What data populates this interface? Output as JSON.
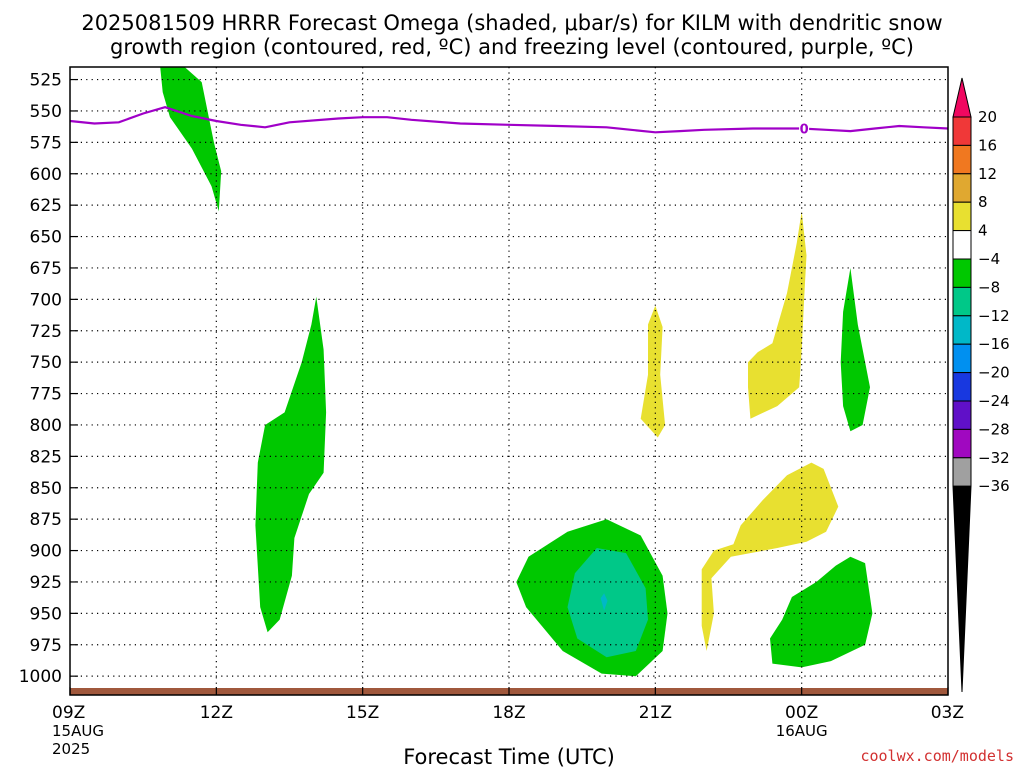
{
  "chart_data": {
    "type": "contour",
    "title_line1": "2025081509 HRRR Forecast Omega (shaded, μbar/s) for KILM with dendritic snow",
    "title_line2": "growth region (contoured, red, ºC) and freezing level (contoured, purple, ºC)",
    "xlabel": "Forecast Time (UTC)",
    "credit": "coolwx.com/models",
    "x_ticks": [
      {
        "hour": 9,
        "label": "09Z",
        "sub1": "15AUG",
        "sub2": "2025"
      },
      {
        "hour": 12,
        "label": "12Z",
        "sub1": "",
        "sub2": ""
      },
      {
        "hour": 15,
        "label": "15Z",
        "sub1": "",
        "sub2": ""
      },
      {
        "hour": 18,
        "label": "18Z",
        "sub1": "",
        "sub2": ""
      },
      {
        "hour": 21,
        "label": "21Z",
        "sub1": "",
        "sub2": ""
      },
      {
        "hour": 24,
        "label": "00Z",
        "sub1": "16AUG",
        "sub2": ""
      },
      {
        "hour": 27,
        "label": "03Z",
        "sub1": "",
        "sub2": ""
      }
    ],
    "y_levels_hpa": [
      525,
      550,
      575,
      600,
      625,
      650,
      675,
      700,
      725,
      750,
      775,
      800,
      825,
      850,
      875,
      900,
      925,
      950,
      975,
      1000
    ],
    "y_range_hpa": [
      515,
      1015
    ],
    "x_range_hours": [
      9,
      27
    ],
    "colorbar": {
      "labels": [
        "20",
        "16",
        "12",
        "8",
        "4",
        "−4",
        "−8",
        "−12",
        "−16",
        "−20",
        "−24",
        "−28",
        "−32",
        "−36"
      ],
      "colors": [
        "#f00860",
        "#f03838",
        "#f07820",
        "#e0a830",
        "#e8e030",
        "#ffffff",
        "#00c800",
        "#00c888",
        "#00b8c8",
        "#0090f0",
        "#1838e0",
        "#6010c8",
        "#a008c0",
        "#a0a0a0"
      ]
    },
    "omega_regions": [
      {
        "color": "#00c800",
        "points": [
          [
            10.85,
            515
          ],
          [
            11.35,
            515
          ],
          [
            11.7,
            527
          ],
          [
            11.95,
            575
          ],
          [
            12.1,
            598
          ],
          [
            12.05,
            630
          ],
          [
            11.9,
            610
          ],
          [
            11.5,
            580
          ],
          [
            11.05,
            555
          ],
          [
            10.9,
            535
          ]
        ]
      },
      {
        "color": "#00c800",
        "points": [
          [
            14.05,
            698
          ],
          [
            14.2,
            740
          ],
          [
            14.25,
            790
          ],
          [
            14.2,
            838
          ],
          [
            13.9,
            855
          ],
          [
            13.6,
            890
          ],
          [
            13.55,
            920
          ],
          [
            13.3,
            955
          ],
          [
            13.05,
            965
          ],
          [
            12.9,
            945
          ],
          [
            12.8,
            880
          ],
          [
            12.85,
            830
          ],
          [
            13.0,
            800
          ],
          [
            13.4,
            790
          ],
          [
            13.75,
            750
          ],
          [
            13.95,
            720
          ]
        ]
      },
      {
        "color": "#00c800",
        "points": [
          [
            19.2,
            885
          ],
          [
            20.0,
            875
          ],
          [
            20.7,
            888
          ],
          [
            21.15,
            920
          ],
          [
            21.25,
            950
          ],
          [
            21.15,
            980
          ],
          [
            20.6,
            1000
          ],
          [
            19.9,
            998
          ],
          [
            19.1,
            980
          ],
          [
            18.35,
            945
          ],
          [
            18.15,
            925
          ],
          [
            18.4,
            905
          ]
        ]
      },
      {
        "color": "#00c888",
        "points": [
          [
            19.8,
            898
          ],
          [
            20.4,
            902
          ],
          [
            20.8,
            930
          ],
          [
            20.85,
            955
          ],
          [
            20.6,
            980
          ],
          [
            20.0,
            985
          ],
          [
            19.4,
            970
          ],
          [
            19.2,
            945
          ],
          [
            19.35,
            918
          ]
        ]
      },
      {
        "color": "#00b8c8",
        "points": [
          [
            19.88,
            938
          ],
          [
            19.95,
            934
          ],
          [
            20.02,
            940
          ],
          [
            19.95,
            948
          ]
        ]
      },
      {
        "color": "#e8e030",
        "points": [
          [
            21.0,
            705
          ],
          [
            21.15,
            722
          ],
          [
            21.1,
            760
          ],
          [
            21.2,
            800
          ],
          [
            21.05,
            810
          ],
          [
            20.7,
            795
          ],
          [
            20.85,
            760
          ],
          [
            20.85,
            720
          ]
        ]
      },
      {
        "color": "#e8e030",
        "points": [
          [
            24.0,
            630
          ],
          [
            24.1,
            665
          ],
          [
            24.05,
            700
          ],
          [
            24.0,
            740
          ],
          [
            23.95,
            770
          ],
          [
            23.5,
            785
          ],
          [
            22.95,
            795
          ],
          [
            22.9,
            770
          ],
          [
            22.9,
            750
          ],
          [
            23.1,
            742
          ],
          [
            23.4,
            735
          ],
          [
            23.7,
            695
          ],
          [
            23.9,
            655
          ]
        ]
      },
      {
        "color": "#e8e030",
        "points": [
          [
            24.2,
            830
          ],
          [
            24.45,
            835
          ],
          [
            24.75,
            865
          ],
          [
            24.5,
            885
          ],
          [
            24.1,
            893
          ],
          [
            23.5,
            898
          ],
          [
            22.55,
            905
          ],
          [
            22.15,
            922
          ],
          [
            22.2,
            950
          ],
          [
            22.05,
            980
          ],
          [
            21.95,
            960
          ],
          [
            21.95,
            915
          ],
          [
            22.2,
            900
          ],
          [
            22.6,
            895
          ],
          [
            22.75,
            880
          ],
          [
            23.2,
            860
          ],
          [
            23.7,
            840
          ]
        ]
      },
      {
        "color": "#00c800",
        "points": [
          [
            25.0,
            905
          ],
          [
            25.3,
            910
          ],
          [
            25.45,
            950
          ],
          [
            25.3,
            975
          ],
          [
            24.6,
            988
          ],
          [
            24.0,
            993
          ],
          [
            23.4,
            990
          ],
          [
            23.35,
            970
          ],
          [
            23.6,
            955
          ],
          [
            23.8,
            937
          ],
          [
            24.3,
            925
          ],
          [
            24.7,
            912
          ]
        ]
      },
      {
        "color": "#00c800",
        "points": [
          [
            25.0,
            675
          ],
          [
            25.15,
            720
          ],
          [
            25.4,
            770
          ],
          [
            25.25,
            800
          ],
          [
            25.0,
            805
          ],
          [
            24.85,
            785
          ],
          [
            24.8,
            750
          ],
          [
            24.85,
            710
          ]
        ]
      }
    ],
    "freezing_level": {
      "color": "#a000c8",
      "label": "0",
      "label_hour": 24.05,
      "points": [
        [
          9.0,
          558
        ],
        [
          9.5,
          560
        ],
        [
          10.0,
          559
        ],
        [
          10.5,
          552
        ],
        [
          10.95,
          547
        ],
        [
          11.5,
          554
        ],
        [
          12.0,
          558
        ],
        [
          12.5,
          561
        ],
        [
          13.0,
          563
        ],
        [
          13.5,
          559
        ],
        [
          14.5,
          556
        ],
        [
          15.0,
          555
        ],
        [
          15.5,
          555
        ],
        [
          16.0,
          557
        ],
        [
          17.0,
          560
        ],
        [
          18.0,
          561
        ],
        [
          19.0,
          562
        ],
        [
          20.0,
          563
        ],
        [
          20.5,
          565
        ],
        [
          21.0,
          567
        ],
        [
          21.5,
          566
        ],
        [
          22.0,
          565
        ],
        [
          23.0,
          564
        ],
        [
          24.0,
          564
        ],
        [
          24.5,
          565
        ],
        [
          25.0,
          566
        ],
        [
          25.5,
          564
        ],
        [
          26.0,
          562
        ],
        [
          26.5,
          563
        ],
        [
          27.0,
          564
        ]
      ]
    },
    "surface_bar": {
      "color": "#a0583c",
      "start_hour": 9,
      "end_hour": 27
    }
  }
}
